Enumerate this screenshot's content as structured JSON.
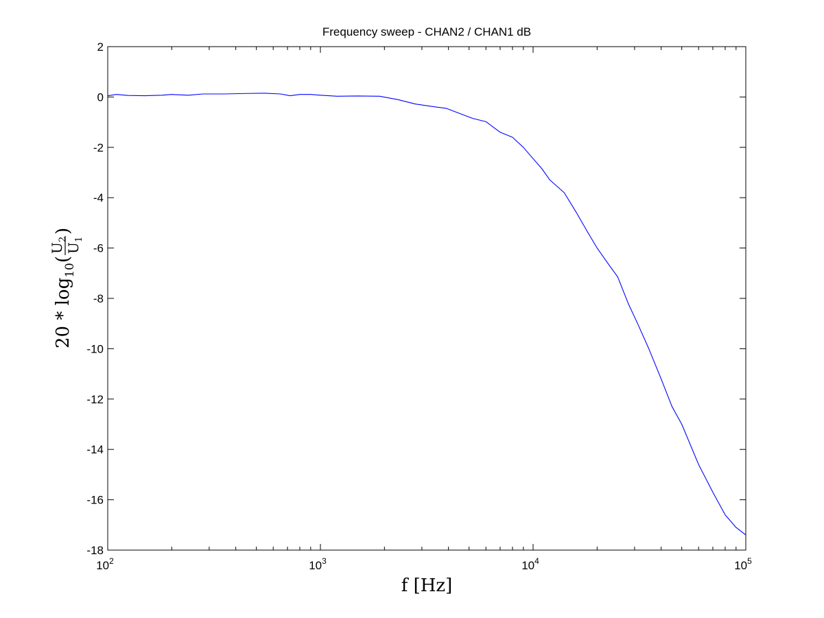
{
  "chart_data": {
    "type": "line",
    "title": "Frequency sweep - CHAN2 / CHAN1 dB",
    "xlabel": "f [Hz]",
    "ylabel": {
      "prefix": "20 * log",
      "base": "10",
      "open": "(",
      "numerator": "U",
      "numerator_sub": "2",
      "denominator": "U",
      "denominator_sub": "1",
      "close": ")"
    },
    "x_scale": "log",
    "xlim": [
      100,
      100000
    ],
    "ylim": [
      -18,
      2
    ],
    "x_ticks": [
      {
        "value": 100,
        "base": "10",
        "exp": "2"
      },
      {
        "value": 1000,
        "base": "10",
        "exp": "3"
      },
      {
        "value": 10000,
        "base": "10",
        "exp": "4"
      },
      {
        "value": 100000,
        "base": "10",
        "exp": "5"
      }
    ],
    "y_ticks": [
      {
        "value": 2,
        "label": "2"
      },
      {
        "value": 0,
        "label": "0"
      },
      {
        "value": -2,
        "label": "-2"
      },
      {
        "value": -4,
        "label": "-4"
      },
      {
        "value": -6,
        "label": "-6"
      },
      {
        "value": -8,
        "label": "-8"
      },
      {
        "value": -10,
        "label": "-10"
      },
      {
        "value": -12,
        "label": "-12"
      },
      {
        "value": -14,
        "label": "-14"
      },
      {
        "value": -16,
        "label": "-16"
      },
      {
        "value": -18,
        "label": "-18"
      }
    ],
    "grid": false,
    "series": [
      {
        "color": "#0000ff",
        "x": [
          100,
          110,
          125,
          150,
          180,
          200,
          240,
          280,
          350,
          450,
          550,
          650,
          720,
          800,
          900,
          1000,
          1200,
          1500,
          1900,
          2300,
          2800,
          3300,
          3900,
          4500,
          5200,
          6000,
          7000,
          8000,
          9000,
          10000,
          11000,
          12000,
          14000,
          16000,
          18000,
          20000,
          22000,
          25000,
          28000,
          31000,
          35000,
          40000,
          45000,
          50000,
          60000,
          70000,
          80000,
          90000,
          100000
        ],
        "y": [
          0.05,
          0.1,
          0.06,
          0.05,
          0.07,
          0.1,
          0.07,
          0.12,
          0.12,
          0.14,
          0.15,
          0.12,
          0.05,
          0.1,
          0.1,
          0.07,
          0.03,
          0.04,
          0.03,
          -0.1,
          -0.28,
          -0.37,
          -0.45,
          -0.65,
          -0.85,
          -0.98,
          -1.4,
          -1.6,
          -2.0,
          -2.45,
          -2.85,
          -3.3,
          -3.8,
          -4.6,
          -5.35,
          -6.0,
          -6.5,
          -7.15,
          -8.2,
          -9.0,
          -10.0,
          -11.2,
          -12.3,
          -13.0,
          -14.6,
          -15.7,
          -16.6,
          -17.1,
          -17.4
        ]
      }
    ]
  }
}
